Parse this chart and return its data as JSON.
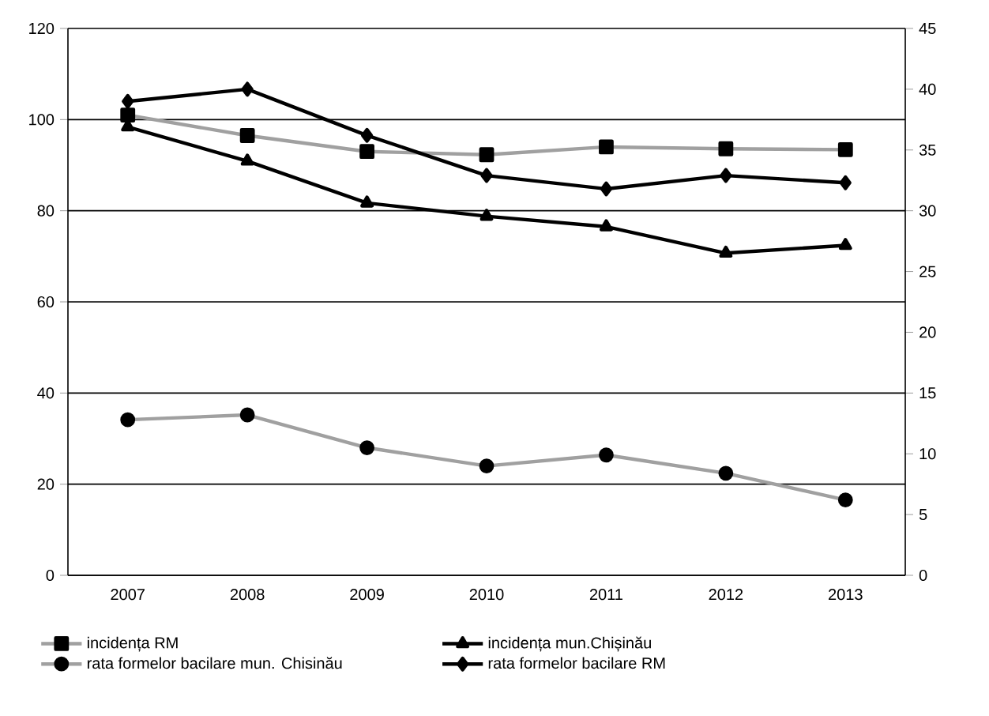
{
  "chart_data": {
    "type": "line",
    "categories": [
      "2007",
      "2008",
      "2009",
      "2010",
      "2011",
      "2012",
      "2013"
    ],
    "series": [
      {
        "name": "incidența RM",
        "color": "#a0a0a0",
        "marker": "square",
        "axis": "y",
        "values": [
          101,
          96.5,
          93,
          92.3,
          94,
          93.6,
          93.4
        ]
      },
      {
        "name": "incidența mun.Chișinău",
        "color": "#000000",
        "marker": "triangle",
        "axis": "y",
        "values": [
          98.4,
          90.9,
          81.7,
          78.8,
          76.5,
          70.7,
          72.4
        ]
      },
      {
        "name": "rata formelor bacilare mun. Chisinău",
        "color": "#a0a0a0",
        "marker": "circle",
        "axis": "y2",
        "values": [
          12.8,
          13.2,
          10.5,
          9.0,
          9.9,
          8.4,
          6.2
        ]
      },
      {
        "name": "rata formelor bacilare RM",
        "color": "#000000",
        "marker": "diamond",
        "axis": "y2",
        "values": [
          39.0,
          40.0,
          36.2,
          32.9,
          31.8,
          32.9,
          32.3
        ]
      }
    ],
    "ylim": [
      0,
      120
    ],
    "yticks": [
      0,
      20,
      40,
      60,
      80,
      100,
      120
    ],
    "y2lim": [
      0,
      45
    ],
    "y2ticks": [
      0,
      5,
      10,
      15,
      20,
      25,
      30,
      35,
      40,
      45
    ],
    "grid": "y",
    "legend": "bottom",
    "line_style": "solid"
  }
}
